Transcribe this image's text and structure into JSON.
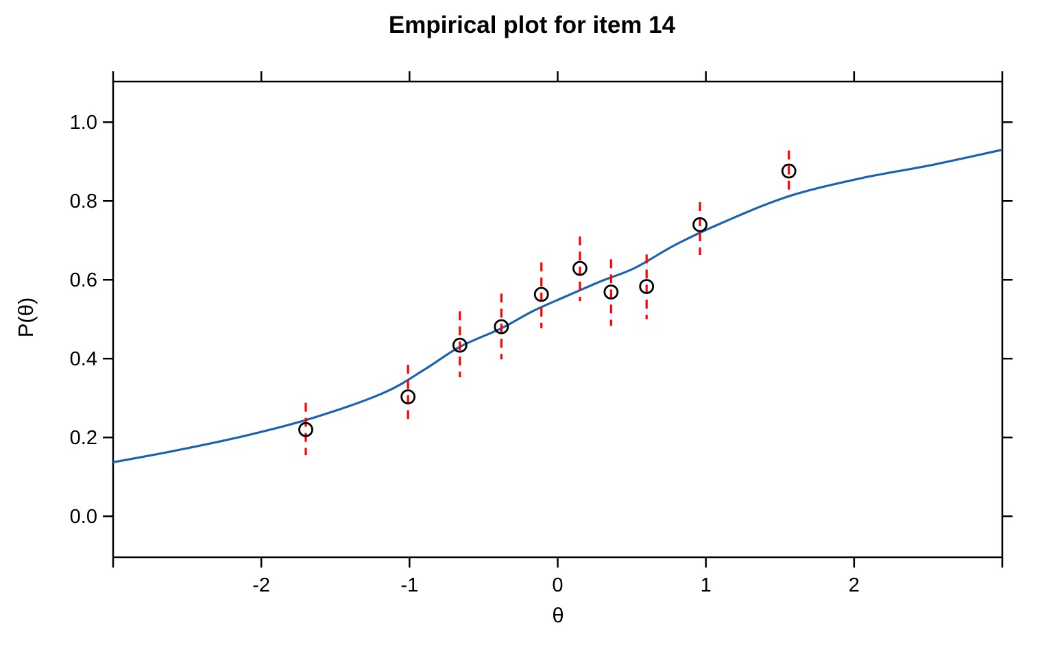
{
  "figure": {
    "title": "Empirical plot for item 14"
  },
  "colors": {
    "curve": "#1B63B2",
    "error_bar": "#FF0000",
    "point_stroke": "#000000",
    "axis": "#000000",
    "background": "#FFFFFF"
  },
  "chart_data": {
    "type": "scatter",
    "title": "Empirical plot for item 14",
    "xlabel": "θ",
    "ylabel": "P(θ)",
    "xlim": [
      -3,
      3
    ],
    "ylim": [
      -0.104,
      1.103
    ],
    "grid": false,
    "legend": "none",
    "x_ticks": [
      {
        "value": -2,
        "label": "-2"
      },
      {
        "value": -1,
        "label": "-1"
      },
      {
        "value": 0,
        "label": "0"
      },
      {
        "value": 1,
        "label": "1"
      },
      {
        "value": 2,
        "label": "2"
      }
    ],
    "y_ticks": [
      {
        "value": 0.0,
        "label": "0.0"
      },
      {
        "value": 0.2,
        "label": "0.2"
      },
      {
        "value": 0.4,
        "label": "0.4"
      },
      {
        "value": 0.6,
        "label": "0.6"
      },
      {
        "value": 0.8,
        "label": "0.8"
      },
      {
        "value": 1.0,
        "label": "1.0"
      }
    ],
    "points": [
      {
        "theta": -1.7,
        "p": 0.22,
        "ci_low": 0.155,
        "ci_high": 0.288
      },
      {
        "theta": -1.01,
        "p": 0.303,
        "ci_low": 0.232,
        "ci_high": 0.384
      },
      {
        "theta": -0.66,
        "p": 0.434,
        "ci_low": 0.353,
        "ci_high": 0.52
      },
      {
        "theta": -0.38,
        "p": 0.481,
        "ci_low": 0.398,
        "ci_high": 0.565
      },
      {
        "theta": -0.11,
        "p": 0.563,
        "ci_low": 0.477,
        "ci_high": 0.644
      },
      {
        "theta": 0.15,
        "p": 0.629,
        "ci_low": 0.546,
        "ci_high": 0.71
      },
      {
        "theta": 0.36,
        "p": 0.569,
        "ci_low": 0.483,
        "ci_high": 0.652
      },
      {
        "theta": 0.6,
        "p": 0.583,
        "ci_low": 0.5,
        "ci_high": 0.664
      },
      {
        "theta": 0.96,
        "p": 0.74,
        "ci_low": 0.663,
        "ci_high": 0.797
      },
      {
        "theta": 1.56,
        "p": 0.876,
        "ci_low": 0.815,
        "ci_high": 0.928
      }
    ],
    "curve": {
      "name": "item characteristic curve",
      "x": [
        -3.0,
        -2.56,
        -2.09,
        -1.63,
        -1.17,
        -0.9,
        -0.66,
        -0.38,
        -0.17,
        0.05,
        0.29,
        0.52,
        0.8,
        1.13,
        1.56,
        2.05,
        2.52,
        3.0
      ],
      "y": [
        0.137,
        0.168,
        0.206,
        0.252,
        0.314,
        0.372,
        0.43,
        0.477,
        0.52,
        0.557,
        0.596,
        0.63,
        0.69,
        0.748,
        0.812,
        0.858,
        0.891,
        0.93
      ]
    }
  }
}
